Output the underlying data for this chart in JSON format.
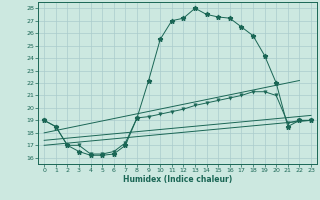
{
  "bg_color": "#cce8e0",
  "grid_color": "#aacccc",
  "line_color": "#1a6655",
  "xlabel": "Humidex (Indice chaleur)",
  "xlim": [
    -0.5,
    23.5
  ],
  "ylim": [
    15.5,
    28.5
  ],
  "xticks": [
    0,
    1,
    2,
    3,
    4,
    5,
    6,
    7,
    8,
    9,
    10,
    11,
    12,
    13,
    14,
    15,
    16,
    17,
    18,
    19,
    20,
    21,
    22,
    23
  ],
  "yticks": [
    16,
    17,
    18,
    19,
    20,
    21,
    22,
    23,
    24,
    25,
    26,
    27,
    28
  ],
  "series1_x": [
    0,
    1,
    2,
    3,
    4,
    5,
    6,
    7,
    8,
    9,
    10,
    11,
    12,
    13,
    14,
    15,
    16,
    17,
    18,
    19,
    20,
    21,
    22,
    23
  ],
  "series1_y": [
    19.0,
    18.5,
    17.0,
    16.5,
    16.2,
    16.2,
    16.3,
    17.0,
    19.2,
    22.2,
    25.5,
    27.0,
    27.2,
    28.0,
    27.5,
    27.3,
    27.2,
    26.5,
    25.8,
    24.2,
    22.0,
    18.5,
    19.0,
    19.0
  ],
  "series2_x": [
    0,
    1,
    2,
    3,
    4,
    5,
    6,
    7,
    8,
    9,
    10,
    11,
    12,
    13,
    14,
    15,
    16,
    17,
    18,
    19,
    20,
    21,
    22,
    23
  ],
  "series2_y": [
    19.0,
    18.5,
    17.0,
    17.0,
    16.3,
    16.3,
    16.5,
    17.2,
    19.2,
    19.3,
    19.5,
    19.7,
    19.9,
    20.2,
    20.4,
    20.6,
    20.8,
    21.0,
    21.3,
    21.3,
    21.0,
    18.8,
    19.0,
    19.0
  ],
  "series3_x": [
    0,
    23
  ],
  "series3_y": [
    17.0,
    19.0
  ],
  "series4_x": [
    0,
    23
  ],
  "series4_y": [
    17.4,
    19.4
  ],
  "series5_x": [
    0,
    22
  ],
  "series5_y": [
    18.0,
    22.2
  ]
}
